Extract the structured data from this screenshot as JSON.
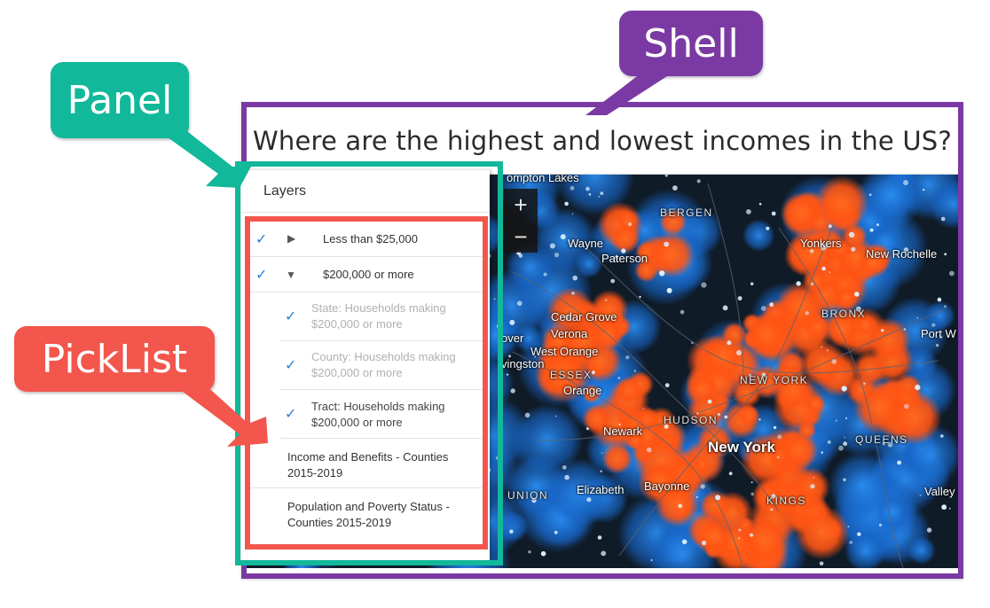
{
  "callouts": {
    "shell": "Shell",
    "panel": "Panel",
    "picklist": "PickList"
  },
  "colors": {
    "shell": "#7b3aa3",
    "panel": "#12b89a",
    "picklist": "#f2564c",
    "check": "#2b7fd6",
    "high_income": "#ff5a1a",
    "low_income": "#1e7fe0"
  },
  "shell": {
    "title": "Where are the highest and lowest incomes in the US?"
  },
  "map": {
    "zoom_in": "+",
    "zoom_out": "−",
    "places": {
      "pompton_lakes": "ompton Lakes",
      "bergen": "BERGEN",
      "wayne": "Wayne",
      "paterson": "Paterson",
      "yonkers": "Yonkers",
      "new_rochelle": "New Rochelle",
      "cedar_grove": "Cedar Grove",
      "verona": "Verona",
      "bronx": "BRONX",
      "port_w": "Port W",
      "over": "over",
      "west_orange": "West Orange",
      "livingston": "vingston",
      "essex": "ESSEX",
      "orange": "Orange",
      "new_york_county": "NEW YORK",
      "hudson": "HUDSON",
      "newark": "Newark",
      "new_york": "New York",
      "queens": "QUEENS",
      "union": "UNION",
      "elizabeth": "Elizabeth",
      "bayonne": "Bayonne",
      "kings": "KINGS",
      "valley": "Valley"
    }
  },
  "panel": {
    "heading": "Layers",
    "items": [
      {
        "label": "Less than $25,000",
        "checked": true,
        "expanded": false,
        "toggle_icon": "▶"
      },
      {
        "label": "$200,000 or more",
        "checked": true,
        "expanded": true,
        "toggle_icon": "▼"
      },
      {
        "label_line1": "State: Households making",
        "label_line2": "$200,000 or more",
        "checked": true
      },
      {
        "label_line1": "County: Households making",
        "label_line2": "$200,000 or more",
        "checked": true
      },
      {
        "label_line1": "Tract: Households making",
        "label_line2": "$200,000 or more",
        "checked": true
      },
      {
        "label_line1": "Income and Benefits - Counties",
        "label_line2": "2015-2019",
        "checked": false
      },
      {
        "label_line1": "Population and Poverty Status -",
        "label_line2": "Counties 2015-2019",
        "checked": false
      }
    ],
    "check_glyph": "✓"
  }
}
